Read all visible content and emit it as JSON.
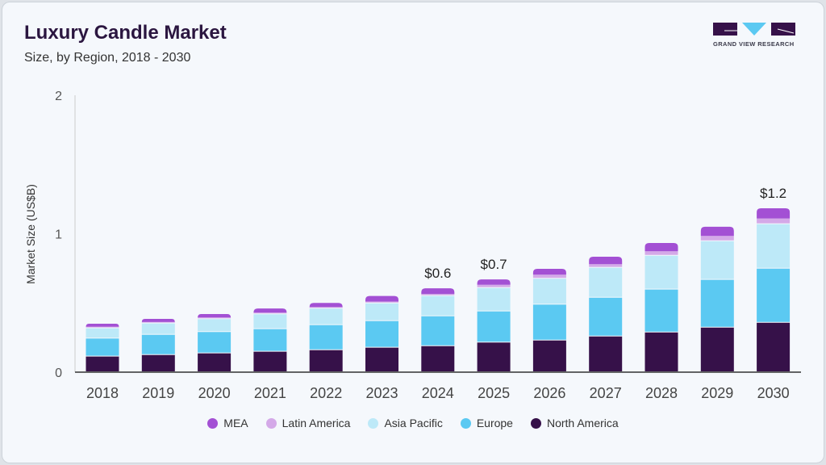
{
  "header": {
    "title": "Luxury Candle Market",
    "subtitle": "Size, by Region, 2018 - 2030",
    "logo_text": "GRAND VIEW RESEARCH"
  },
  "chart_data": {
    "type": "bar",
    "stacked": true,
    "title": "Luxury Candle Market",
    "subtitle": "Size, by Region, 2018 - 2030",
    "xlabel": "",
    "ylabel": "Market Size (US$B)",
    "ylim": [
      0,
      2
    ],
    "yticks": [
      "0",
      "1",
      "2"
    ],
    "grid": false,
    "legend_position": "bottom",
    "categories": [
      "2018",
      "2019",
      "2020",
      "2021",
      "2022",
      "2023",
      "2024",
      "2025",
      "2026",
      "2027",
      "2028",
      "2029",
      "2030"
    ],
    "series": [
      {
        "name": "North America",
        "color": "#361149",
        "values": [
          0.113,
          0.124,
          0.136,
          0.148,
          0.159,
          0.177,
          0.188,
          0.214,
          0.229,
          0.258,
          0.287,
          0.322,
          0.357
        ]
      },
      {
        "name": "Europe",
        "color": "#5bc9f2",
        "values": [
          0.13,
          0.146,
          0.154,
          0.163,
          0.181,
          0.192,
          0.216,
          0.225,
          0.259,
          0.28,
          0.31,
          0.345,
          0.391
        ]
      },
      {
        "name": "Asia Pacific",
        "color": "#bde9f8",
        "values": [
          0.074,
          0.082,
          0.093,
          0.107,
          0.119,
          0.128,
          0.146,
          0.169,
          0.187,
          0.216,
          0.244,
          0.279,
          0.321
        ]
      },
      {
        "name": "Latin America",
        "color": "#d4a9e8",
        "values": [
          0.011,
          0.01,
          0.012,
          0.012,
          0.011,
          0.013,
          0.015,
          0.023,
          0.029,
          0.026,
          0.032,
          0.038,
          0.041
        ]
      },
      {
        "name": "MEA",
        "color": "#a350d4",
        "values": [
          0.022,
          0.023,
          0.025,
          0.03,
          0.03,
          0.04,
          0.041,
          0.039,
          0.042,
          0.054,
          0.06,
          0.066,
          0.074
        ]
      }
    ],
    "annotations": [
      {
        "category": "2024",
        "label": "$0.6"
      },
      {
        "category": "2025",
        "label": "$0.7"
      },
      {
        "category": "2030",
        "label": "$1.2"
      }
    ]
  }
}
